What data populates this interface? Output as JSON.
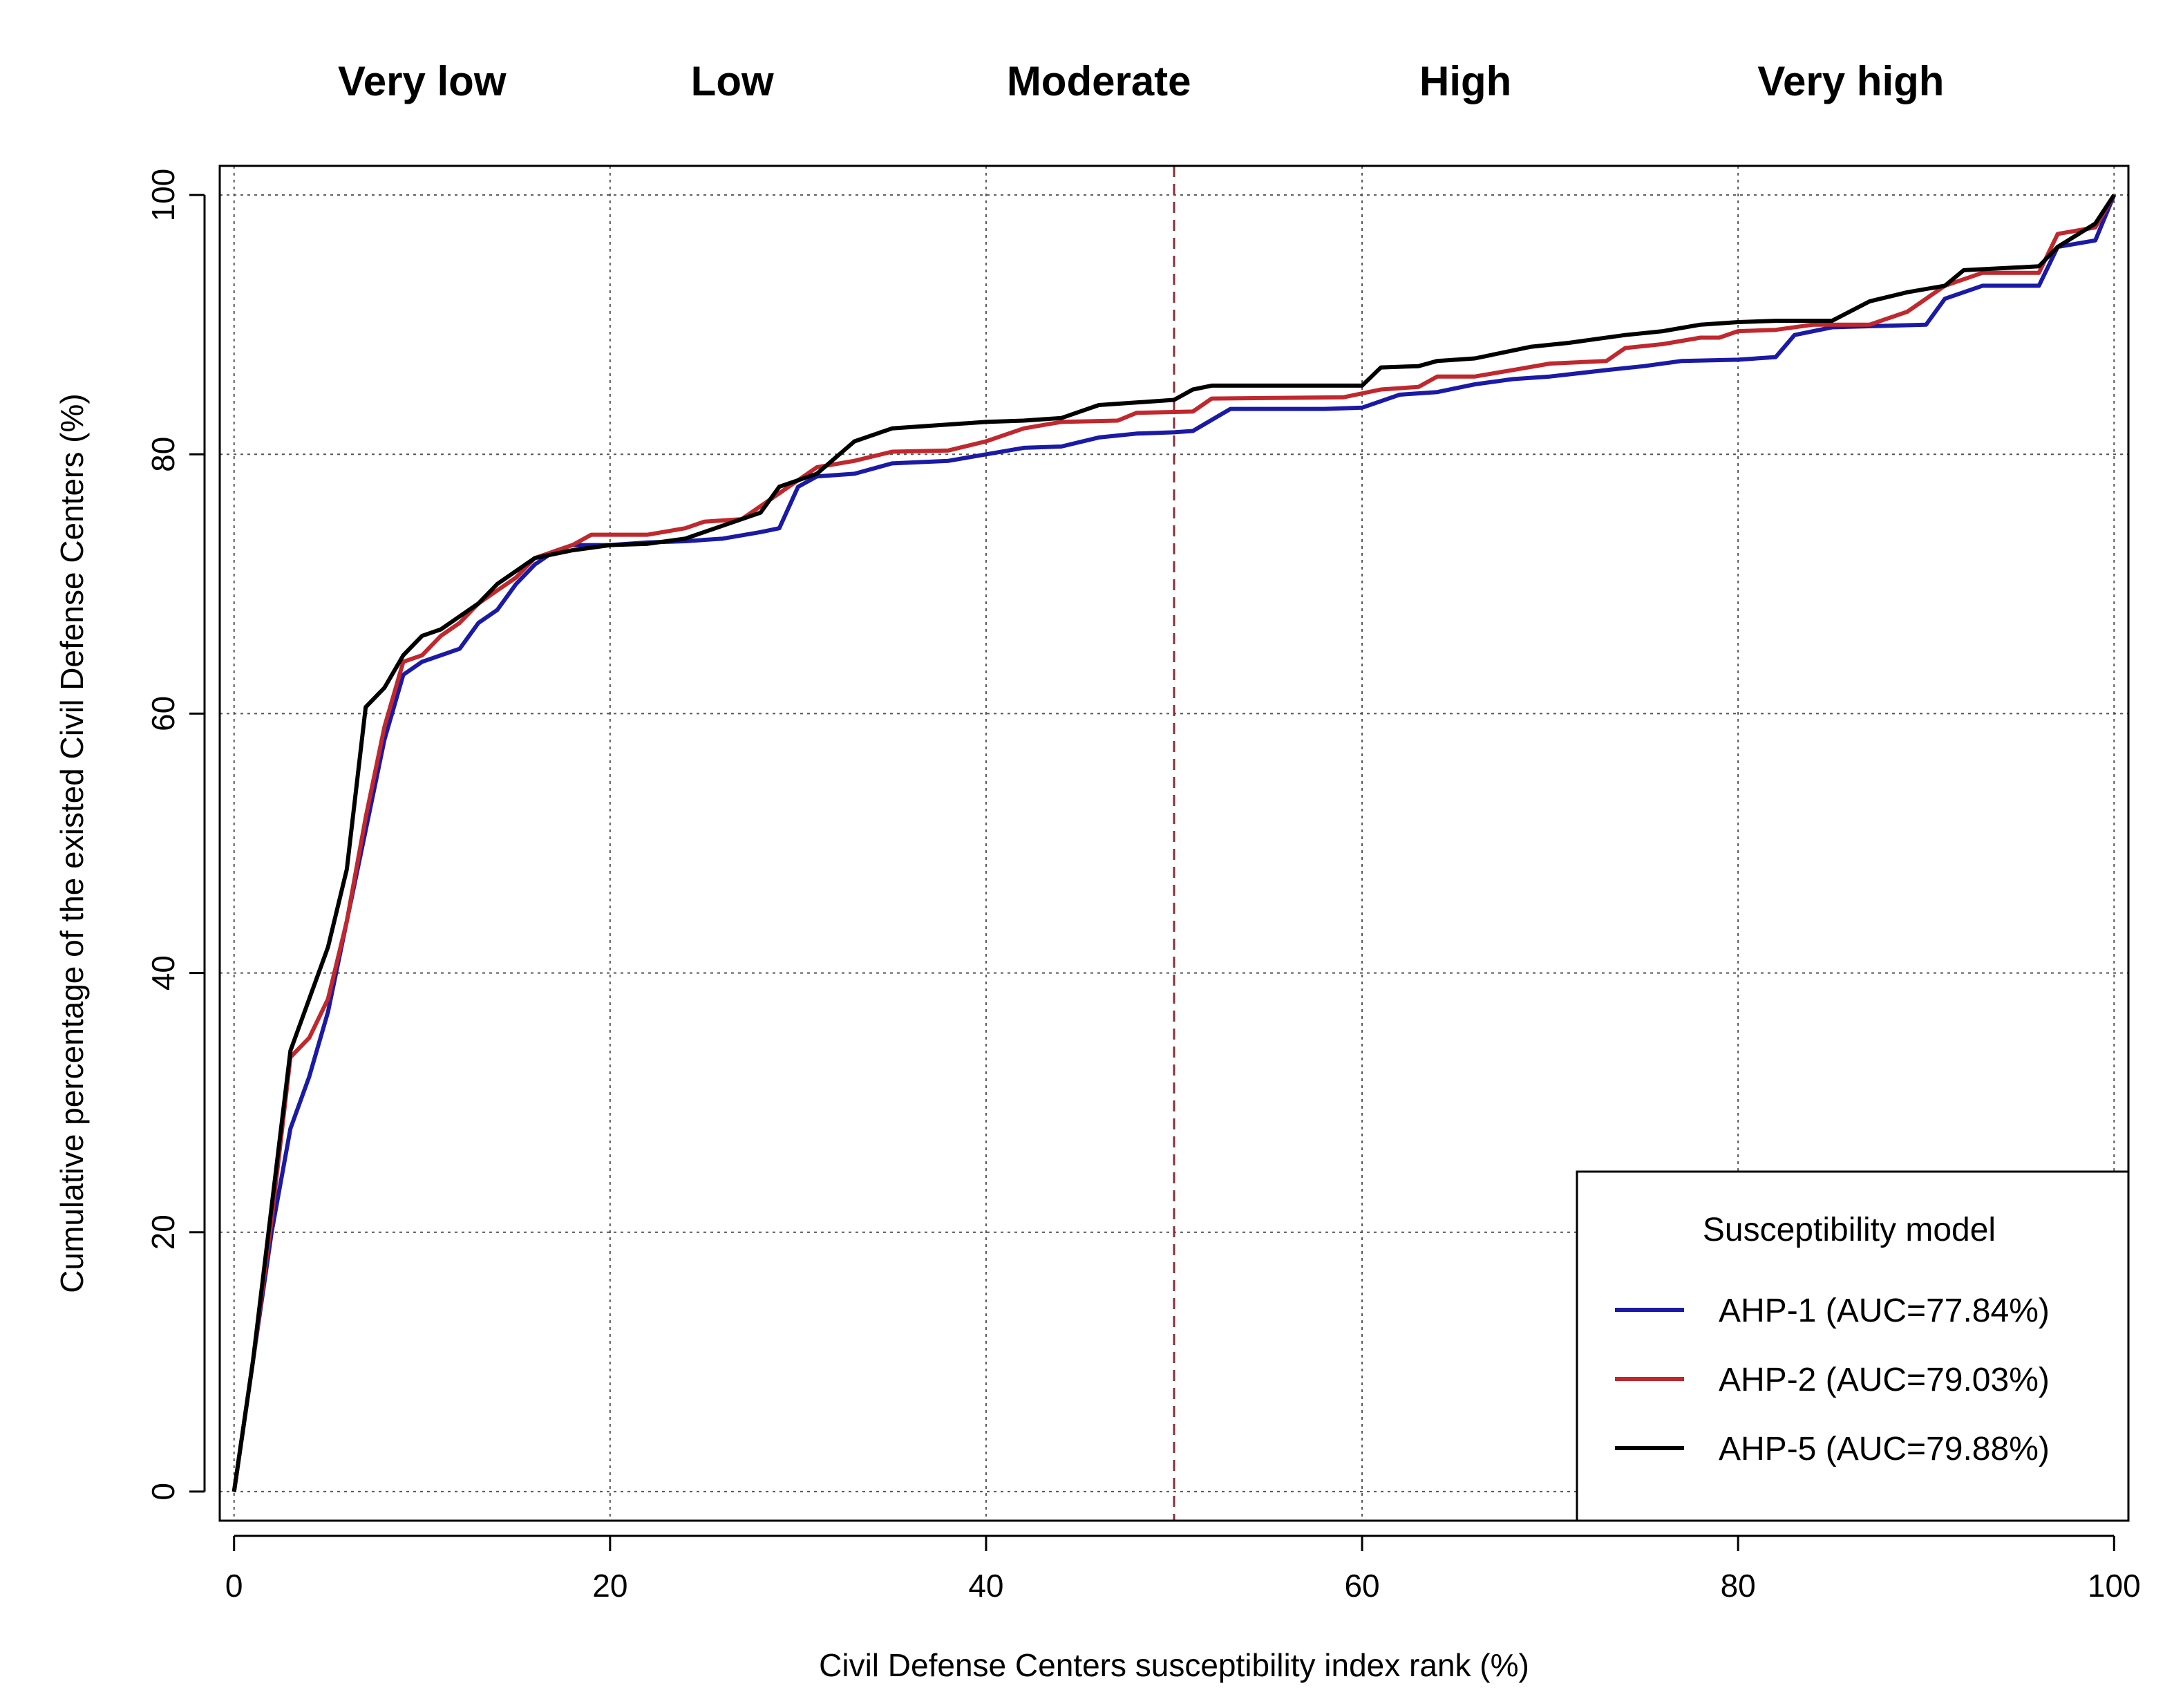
{
  "chart_data": {
    "type": "line",
    "title": "",
    "xlabel": "Civil Defense Centers susceptibility index rank (%)",
    "ylabel": "Cumulative percentage of the existed Civil Defense Centers  (%)",
    "xlim": [
      0,
      100
    ],
    "ylim": [
      0,
      100
    ],
    "xticks": [
      0,
      20,
      40,
      60,
      80,
      100
    ],
    "yticks": [
      0,
      20,
      40,
      60,
      80,
      100
    ],
    "grid": true,
    "reference_line_x": 50,
    "band_labels": [
      {
        "label": "Very low",
        "x": 10
      },
      {
        "label": "Low",
        "x": 26.5
      },
      {
        "label": "Moderate",
        "x": 46
      },
      {
        "label": "High",
        "x": 65.5
      },
      {
        "label": "Very high",
        "x": 86
      }
    ],
    "legend": {
      "title": "Susceptibility model",
      "position": "bottom-right"
    },
    "series": [
      {
        "name": "AHP-1 (AUC=77.84%)",
        "color": "#1a1aa6",
        "points": [
          [
            0,
            0
          ],
          [
            1,
            10
          ],
          [
            2,
            20
          ],
          [
            3,
            28
          ],
          [
            4,
            32
          ],
          [
            5,
            37
          ],
          [
            6,
            44
          ],
          [
            7,
            51
          ],
          [
            8,
            58
          ],
          [
            9,
            63
          ],
          [
            10,
            64
          ],
          [
            11,
            64.5
          ],
          [
            12,
            65
          ],
          [
            13,
            67
          ],
          [
            14,
            68
          ],
          [
            15,
            70
          ],
          [
            16,
            71.5
          ],
          [
            17,
            72.5
          ],
          [
            18,
            73
          ],
          [
            20,
            73
          ],
          [
            22,
            73.2
          ],
          [
            24,
            73.3
          ],
          [
            26,
            73.5
          ],
          [
            28,
            74
          ],
          [
            29,
            74.3
          ],
          [
            30,
            77.5
          ],
          [
            31,
            78.3
          ],
          [
            33,
            78.5
          ],
          [
            35,
            79.3
          ],
          [
            38,
            79.5
          ],
          [
            40,
            80
          ],
          [
            42,
            80.5
          ],
          [
            44,
            80.6
          ],
          [
            46,
            81.3
          ],
          [
            48,
            81.6
          ],
          [
            50,
            81.7
          ],
          [
            51,
            81.8
          ],
          [
            53,
            83.5
          ],
          [
            58,
            83.5
          ],
          [
            60,
            83.6
          ],
          [
            62,
            84.6
          ],
          [
            64,
            84.8
          ],
          [
            66,
            85.4
          ],
          [
            68,
            85.8
          ],
          [
            70,
            86
          ],
          [
            73,
            86.5
          ],
          [
            75,
            86.8
          ],
          [
            77,
            87.2
          ],
          [
            80,
            87.3
          ],
          [
            82,
            87.5
          ],
          [
            83,
            89.2
          ],
          [
            85,
            89.8
          ],
          [
            90,
            90
          ],
          [
            91,
            92
          ],
          [
            93,
            93
          ],
          [
            96,
            93
          ],
          [
            97,
            96
          ],
          [
            99,
            96.5
          ],
          [
            100,
            100
          ]
        ]
      },
      {
        "name": "AHP-2 (AUC=79.03%)",
        "color": "#c0282d",
        "points": [
          [
            0,
            0
          ],
          [
            1,
            10
          ],
          [
            2,
            21
          ],
          [
            3,
            33.5
          ],
          [
            4,
            35
          ],
          [
            5,
            38
          ],
          [
            6,
            44
          ],
          [
            7,
            52
          ],
          [
            8,
            59
          ],
          [
            9,
            64
          ],
          [
            10,
            64.5
          ],
          [
            11,
            66
          ],
          [
            12,
            67
          ],
          [
            13,
            68.5
          ],
          [
            14,
            69.5
          ],
          [
            15,
            70.5
          ],
          [
            16,
            72
          ],
          [
            17,
            72.5
          ],
          [
            18,
            73
          ],
          [
            19,
            73.8
          ],
          [
            20,
            73.8
          ],
          [
            22,
            73.8
          ],
          [
            24,
            74.3
          ],
          [
            25,
            74.8
          ],
          [
            27,
            75
          ],
          [
            29,
            77
          ],
          [
            31,
            79
          ],
          [
            33,
            79.5
          ],
          [
            35,
            80.2
          ],
          [
            38,
            80.3
          ],
          [
            40,
            81
          ],
          [
            42,
            82
          ],
          [
            44,
            82.5
          ],
          [
            47,
            82.6
          ],
          [
            48,
            83.2
          ],
          [
            51,
            83.3
          ],
          [
            52,
            84.3
          ],
          [
            59,
            84.4
          ],
          [
            61,
            85
          ],
          [
            63,
            85.2
          ],
          [
            64,
            86
          ],
          [
            66,
            86
          ],
          [
            68,
            86.5
          ],
          [
            70,
            87
          ],
          [
            73,
            87.2
          ],
          [
            74,
            88.2
          ],
          [
            76,
            88.5
          ],
          [
            78,
            89
          ],
          [
            79,
            89
          ],
          [
            80,
            89.5
          ],
          [
            82,
            89.6
          ],
          [
            84,
            90
          ],
          [
            87,
            90
          ],
          [
            89,
            91
          ],
          [
            91,
            93
          ],
          [
            93,
            94
          ],
          [
            96,
            94
          ],
          [
            97,
            97
          ],
          [
            99,
            97.5
          ],
          [
            100,
            100
          ]
        ]
      },
      {
        "name": "AHP-5 (AUC=79.88%)",
        "color": "#000000",
        "points": [
          [
            0,
            0
          ],
          [
            1,
            10
          ],
          [
            2,
            22
          ],
          [
            3,
            34
          ],
          [
            4,
            38
          ],
          [
            5,
            42
          ],
          [
            6,
            48
          ],
          [
            7,
            60.5
          ],
          [
            8,
            62
          ],
          [
            9,
            64.5
          ],
          [
            10,
            66
          ],
          [
            11,
            66.5
          ],
          [
            12,
            67.5
          ],
          [
            13,
            68.5
          ],
          [
            14,
            70
          ],
          [
            15,
            71
          ],
          [
            16,
            72
          ],
          [
            17,
            72.3
          ],
          [
            18,
            72.6
          ],
          [
            20,
            73
          ],
          [
            22,
            73.1
          ],
          [
            24,
            73.5
          ],
          [
            26,
            74.5
          ],
          [
            28,
            75.5
          ],
          [
            29,
            77.5
          ],
          [
            31,
            78.5
          ],
          [
            33,
            81
          ],
          [
            35,
            82
          ],
          [
            37,
            82.2
          ],
          [
            40,
            82.5
          ],
          [
            42,
            82.6
          ],
          [
            44,
            82.8
          ],
          [
            46,
            83.8
          ],
          [
            48,
            84
          ],
          [
            50,
            84.2
          ],
          [
            51,
            85
          ],
          [
            52,
            85.3
          ],
          [
            55,
            85.3
          ],
          [
            60,
            85.3
          ],
          [
            61,
            86.7
          ],
          [
            63,
            86.8
          ],
          [
            64,
            87.2
          ],
          [
            66,
            87.4
          ],
          [
            68,
            88
          ],
          [
            69,
            88.3
          ],
          [
            71,
            88.6
          ],
          [
            72,
            88.8
          ],
          [
            74,
            89.2
          ],
          [
            76,
            89.5
          ],
          [
            78,
            90
          ],
          [
            80,
            90.2
          ],
          [
            82,
            90.3
          ],
          [
            85,
            90.3
          ],
          [
            87,
            91.8
          ],
          [
            89,
            92.5
          ],
          [
            91,
            93
          ],
          [
            92,
            94.2
          ],
          [
            96,
            94.5
          ],
          [
            97,
            96
          ],
          [
            99,
            97.8
          ],
          [
            100,
            100
          ]
        ]
      }
    ]
  }
}
